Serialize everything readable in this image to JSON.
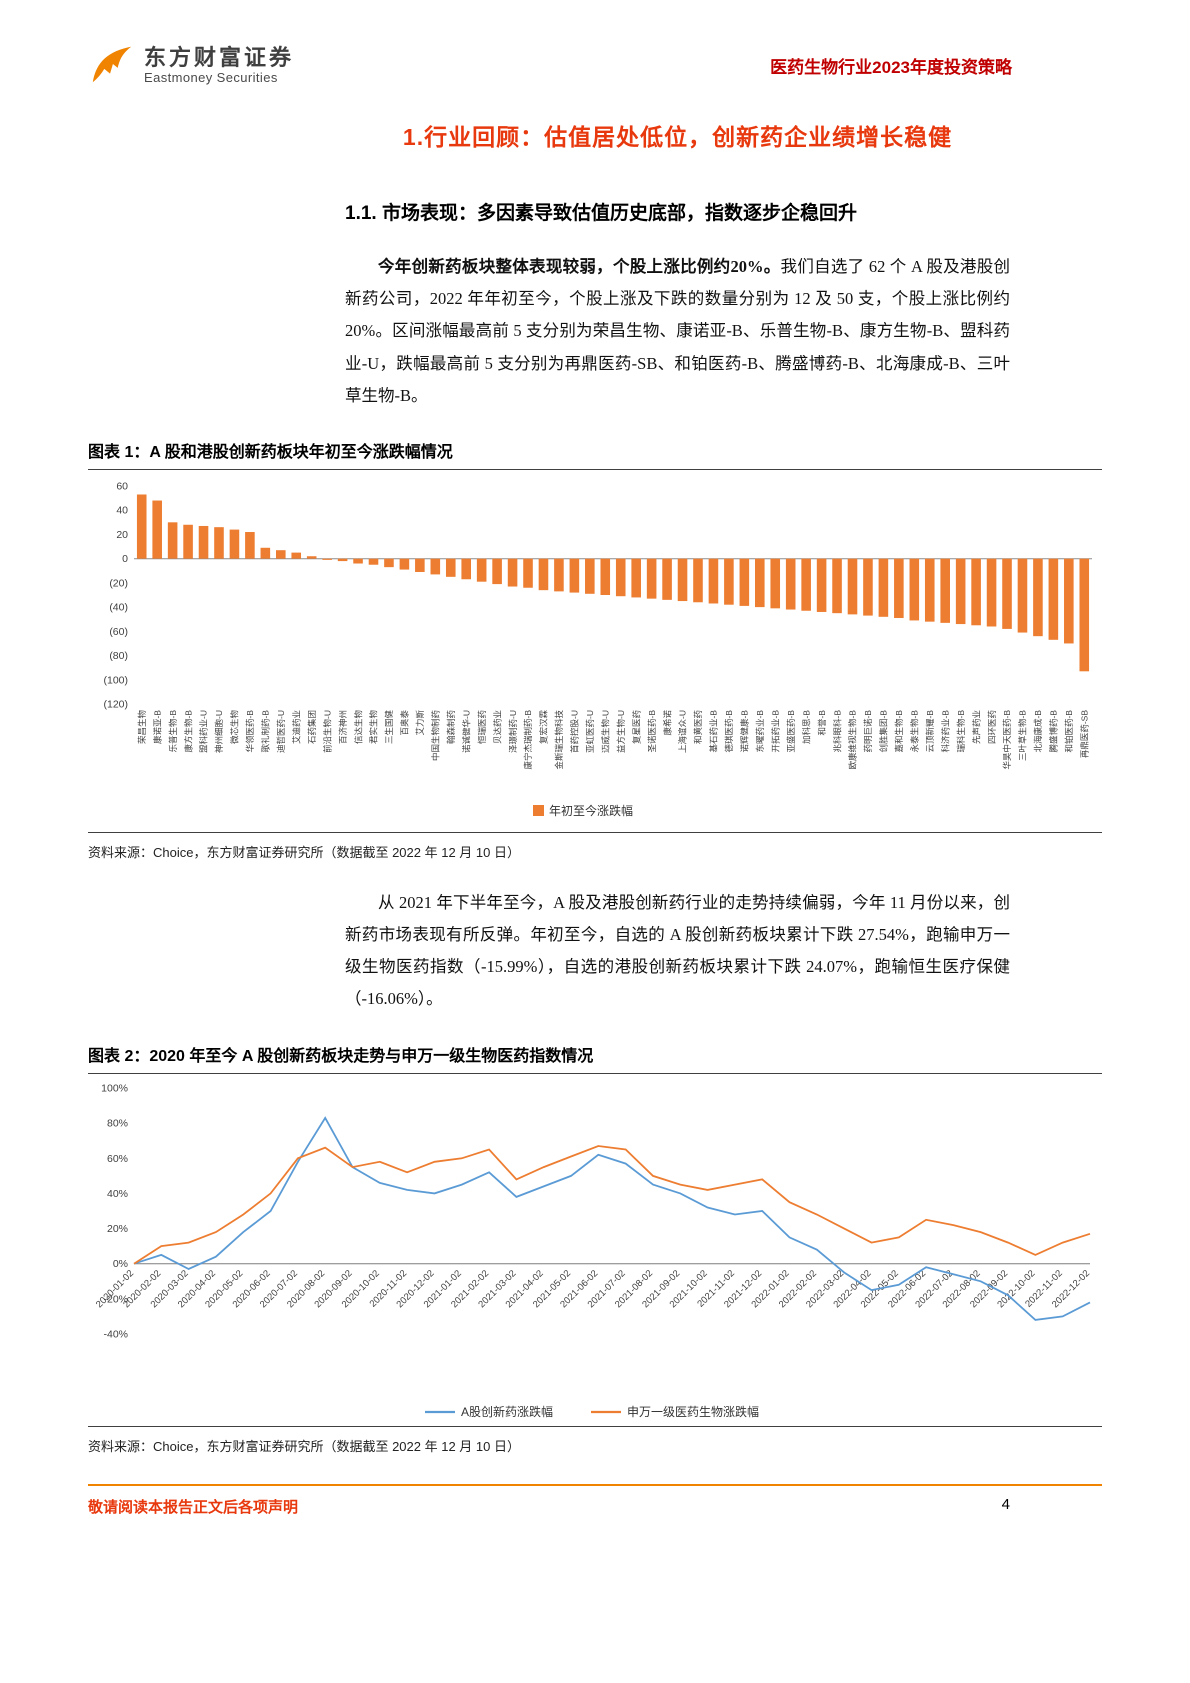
{
  "header": {
    "brand_cn": "东方财富证券",
    "brand_en": "Eastmoney Securities",
    "report_title": "医药生物行业2023年度投资策略"
  },
  "title": "1.行业回顾：估值居处低位，创新药企业绩增长稳健",
  "section": {
    "heading": "1.1. 市场表现：多因素导致估值历史底部，指数逐步企稳回升",
    "para1_bold": "今年创新药板块整体表现较弱，个股上涨比例约20%。",
    "para1_rest": "我们自选了 62 个 A 股及港股创新药公司，2022 年年初至今，个股上涨及下跌的数量分别为 12 及 50 支，个股上涨比例约 20%。区间涨幅最高前 5 支分别为荣昌生物、康诺亚-B、乐普生物-B、康方生物-B、盟科药业-U，跌幅最高前 5 支分别为再鼎医药-SB、和铂医药-B、腾盛博药-B、北海康成-B、三叶草生物-B。",
    "para2": "从 2021 年下半年至今，A 股及港股创新药行业的走势持续偏弱，今年 11 月份以来，创新药市场表现有所反弹。年初至今，自选的 A 股创新药板块累计下跌 27.54%，跑输申万一级生物医药指数（-15.99%），自选的港股创新药板块累计下跌 24.07%，跑输恒生医疗保健（-16.06%）。"
  },
  "figure1": {
    "caption": "图表 1：A 股和港股创新药板块年初至今涨跌幅情况",
    "source": "资料来源：Choice，东方财富证券研究所（数据截至 2022 年 12 月 10 日）"
  },
  "figure2": {
    "caption": "图表 2：2020 年至今 A 股创新药板块走势与申万一级生物医药指数情况",
    "source": "资料来源：Choice，东方财富证券研究所（数据截至 2022 年 12 月 10 日）"
  },
  "footer": {
    "disclaimer": "敬请阅读本报告正文后各项声明",
    "page_number": "4"
  },
  "colors": {
    "accent_orange": "#f08300",
    "header_red": "#c00000",
    "title_red": "#e8380d",
    "bar_orange": "#ED7D31",
    "line_blue": "#5B9BD5",
    "line_orange": "#ED7D31"
  },
  "chart_data": [
    {
      "type": "bar",
      "title": "A股和港股创新药板块年初至今涨跌幅情况",
      "legend": [
        "年初至今涨跌幅"
      ],
      "legend_position": "bottom",
      "bar_color": "#ED7D31",
      "grid": false,
      "xlabel": "",
      "ylabel": "",
      "ylim": [
        -120,
        60
      ],
      "ytick_step": 20,
      "ytick_labels": [
        "60",
        "40",
        "20",
        "0",
        "(20)",
        "(40)",
        "(60)",
        "(80)",
        "(100)",
        "(120)"
      ],
      "categories": [
        "荣昌生物",
        "康诺亚-B",
        "乐普生物-B",
        "康方生物-B",
        "盟科药业-U",
        "神州细胞-U",
        "微芯生物",
        "华领医药-B",
        "歌礼制药-B",
        "迪哲医药-U",
        "艾迪药业",
        "石药集团",
        "前沿生物-U",
        "百济神州",
        "信达生物",
        "君实生物",
        "三生国健",
        "百奥泰",
        "艾力斯",
        "中国生物制药",
        "翰森制药",
        "诺诚健华-U",
        "恒瑞医药",
        "贝达药业",
        "泽璟制药-U",
        "康宁杰瑞制药-B",
        "复宏汉霖",
        "金斯瑞生物科技",
        "首药控股-U",
        "亚虹医药-U",
        "迈威生物-U",
        "益方生物-U",
        "复星医药",
        "圣诺医药-B",
        "康希诺",
        "上海谊众-U",
        "和黄医药",
        "基石药业-B",
        "德琪医药-B",
        "诺辉健康-B",
        "东曜药业-B",
        "开拓药业-B",
        "亚盛医药-B",
        "加科思-B",
        "和誉-B",
        "兆科眼科-B",
        "欧康维视生物-B",
        "药明巨诺-B",
        "创胜集团-B",
        "嘉和生物-B",
        "永泰生物-B",
        "云顶新耀-B",
        "科济药业-B",
        "瑞科生物-B",
        "先声药业",
        "四环医药",
        "华昊中天医药-B",
        "三叶草生物-B",
        "北海康成-B",
        "腾盛博药-B",
        "和铂医药-B",
        "再鼎医药-SB"
      ],
      "values": [
        53,
        48,
        30,
        28,
        27,
        26,
        24,
        22,
        9,
        7,
        5,
        2,
        -1,
        -2,
        -4,
        -5,
        -7,
        -9,
        -11,
        -13,
        -15,
        -17,
        -19,
        -21,
        -23,
        -24,
        -26,
        -27,
        -28,
        -29,
        -30,
        -31,
        -32,
        -33,
        -34,
        -35,
        -36,
        -37,
        -38,
        -39,
        -40,
        -41,
        -42,
        -43,
        -44,
        -45,
        -46,
        -47,
        -48,
        -49,
        -51,
        -52,
        -53,
        -54,
        -55,
        -56,
        -58,
        -61,
        -64,
        -67,
        -70,
        -93
      ]
    },
    {
      "type": "line",
      "title": "2020年至今A股创新药板块走势与申万一级生物医药指数情况",
      "legend_position": "bottom",
      "grid": false,
      "xlabel": "",
      "ylabel": "",
      "ylim": [
        -40,
        100
      ],
      "ytick_step": 20,
      "ytick_labels": [
        "100%",
        "80%",
        "60%",
        "40%",
        "20%",
        "0%",
        "-20%",
        "-40%"
      ],
      "x": [
        "2020-01-02",
        "2020-02-02",
        "2020-03-02",
        "2020-04-02",
        "2020-05-02",
        "2020-06-02",
        "2020-07-02",
        "2020-08-02",
        "2020-09-02",
        "2020-10-02",
        "2020-11-02",
        "2020-12-02",
        "2021-01-02",
        "2021-02-02",
        "2021-03-02",
        "2021-04-02",
        "2021-05-02",
        "2021-06-02",
        "2021-07-02",
        "2021-08-02",
        "2021-09-02",
        "2021-10-02",
        "2021-11-02",
        "2021-12-02",
        "2022-01-02",
        "2022-02-02",
        "2022-03-02",
        "2022-04-02",
        "2022-05-02",
        "2022-06-02",
        "2022-07-02",
        "2022-08-02",
        "2022-09-02",
        "2022-10-02",
        "2022-11-02",
        "2022-12-02"
      ],
      "series": [
        {
          "name": "A股创新药涨跌幅",
          "color": "#5B9BD5",
          "values": [
            0,
            5,
            -3,
            4,
            18,
            30,
            58,
            83,
            55,
            46,
            42,
            40,
            45,
            52,
            38,
            44,
            50,
            62,
            57,
            45,
            40,
            32,
            28,
            30,
            15,
            8,
            -5,
            -15,
            -12,
            -2,
            -6,
            -10,
            -18,
            -32,
            -30,
            -22
          ]
        },
        {
          "name": "申万一级医药生物涨跌幅",
          "color": "#ED7D31",
          "values": [
            0,
            10,
            12,
            18,
            28,
            40,
            60,
            66,
            55,
            58,
            52,
            58,
            60,
            65,
            48,
            55,
            61,
            67,
            65,
            50,
            45,
            42,
            45,
            48,
            35,
            28,
            20,
            12,
            15,
            25,
            22,
            18,
            12,
            5,
            12,
            17
          ]
        }
      ]
    }
  ]
}
